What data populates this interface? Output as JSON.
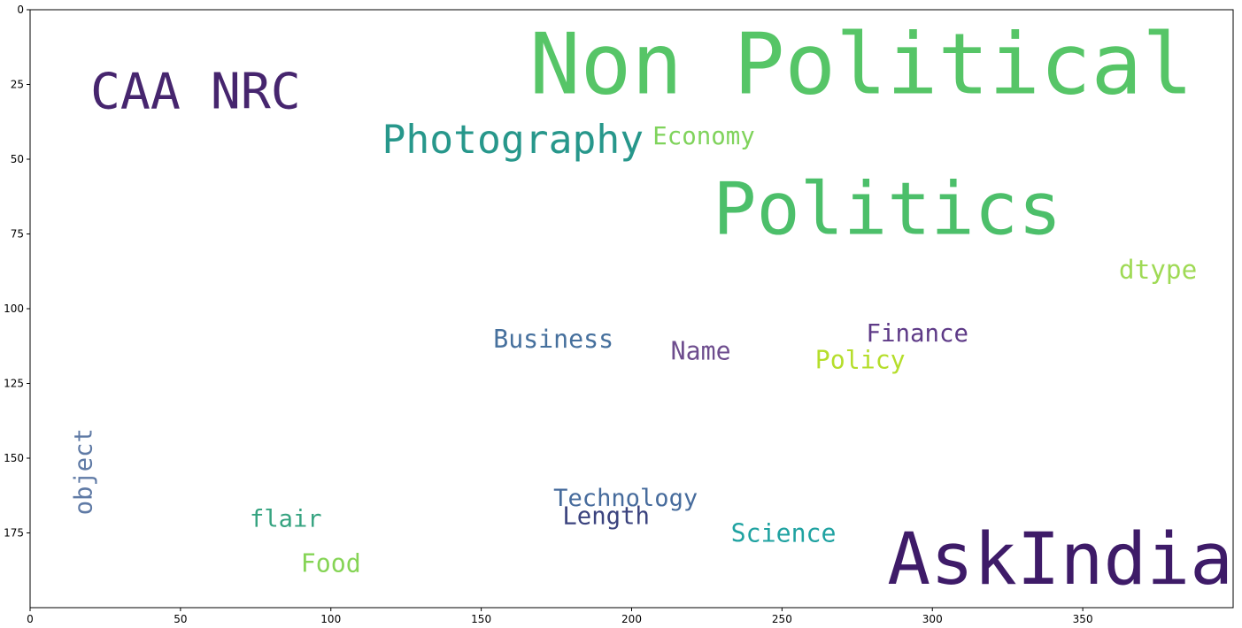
{
  "chart_data": {
    "type": "wordcloud",
    "xlim": [
      0,
      400
    ],
    "ylim": [
      200,
      0
    ],
    "x_ticks": [
      "0",
      "50",
      "100",
      "150",
      "200",
      "250",
      "300",
      "350"
    ],
    "y_ticks": [
      "0",
      "25",
      "50",
      "75",
      "100",
      "125",
      "150",
      "175"
    ],
    "words": [
      {
        "text": "Non Political",
        "x": 166,
        "y": 8,
        "x2": 400,
        "y2": 28,
        "color": "#56c567"
      },
      {
        "text": "CAA NRC",
        "x": 20,
        "y": 21,
        "x2": 90,
        "y2": 33,
        "color": "#46256e"
      },
      {
        "text": "Photography",
        "x": 117,
        "y": 37,
        "x2": 204,
        "y2": 48,
        "color": "#27978b"
      },
      {
        "text": "Economy",
        "x": 207,
        "y": 38,
        "x2": 241,
        "y2": 45,
        "color": "#7fd35b"
      },
      {
        "text": "Politics",
        "x": 227,
        "y": 56,
        "x2": 343,
        "y2": 75,
        "color": "#4cbf6a"
      },
      {
        "text": "dtype",
        "x": 362,
        "y": 82,
        "x2": 388,
        "y2": 90,
        "color": "#9fda55"
      },
      {
        "text": "Business",
        "x": 154,
        "y": 105,
        "x2": 194,
        "y2": 113,
        "color": "#46709d"
      },
      {
        "text": "Finance",
        "x": 278,
        "y": 103,
        "x2": 312,
        "y2": 111,
        "color": "#5e3a87"
      },
      {
        "text": "Name",
        "x": 213,
        "y": 109,
        "x2": 233,
        "y2": 117,
        "color": "#6e4d8e"
      },
      {
        "text": "Policy",
        "x": 261,
        "y": 112,
        "x2": 291,
        "y2": 120,
        "color": "#b5de2b"
      },
      {
        "text": "object",
        "x": 14,
        "y": 140,
        "x2": 22,
        "y2": 169,
        "color": "#5f7aa5",
        "rotate": true
      },
      {
        "text": "Technology",
        "x": 174,
        "y": 157,
        "x2": 222,
        "y2": 166,
        "color": "#466b9c"
      },
      {
        "text": "Length",
        "x": 177,
        "y": 164,
        "x2": 206,
        "y2": 172,
        "color": "#3b437e"
      },
      {
        "text": "flair",
        "x": 73,
        "y": 165,
        "x2": 97,
        "y2": 173,
        "color": "#36a380"
      },
      {
        "text": "Science",
        "x": 233,
        "y": 170,
        "x2": 268,
        "y2": 178,
        "color": "#1fa2a1"
      },
      {
        "text": "Food",
        "x": 90,
        "y": 180,
        "x2": 110,
        "y2": 188,
        "color": "#85d455"
      },
      {
        "text": "AskIndia",
        "x": 285,
        "y": 173,
        "x2": 400,
        "y2": 192,
        "color": "#3e1b68"
      }
    ]
  }
}
